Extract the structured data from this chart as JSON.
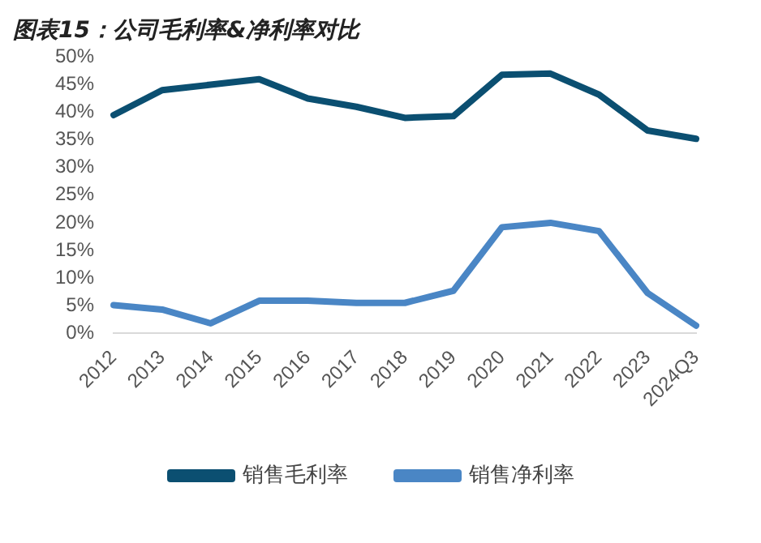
{
  "chart_data": {
    "type": "line",
    "title": "图表15：公司毛利率&净利率对比",
    "categories": [
      "2012",
      "2013",
      "2014",
      "2015",
      "2016",
      "2017",
      "2018",
      "2019",
      "2020",
      "2021",
      "2022",
      "2023",
      "2024Q3"
    ],
    "series": [
      {
        "name": "销售毛利率",
        "color": "#0b4f71",
        "values": [
          39.5,
          44,
          45,
          46,
          42.5,
          41,
          39,
          39.3,
          46.8,
          47,
          43.2,
          36.7,
          35.2
        ]
      },
      {
        "name": "销售净利率",
        "color": "#4a86c5",
        "values": [
          5.1,
          4.3,
          1.8,
          5.9,
          5.9,
          5.5,
          5.5,
          7.7,
          19.2,
          20,
          18.5,
          7.3,
          1.4
        ]
      }
    ],
    "ylim": [
      0,
      50
    ],
    "yticks": [
      {
        "value": 0,
        "label": "0%"
      },
      {
        "value": 5,
        "label": "5%"
      },
      {
        "value": 10,
        "label": "10%"
      },
      {
        "value": 15,
        "label": "15%"
      },
      {
        "value": 20,
        "label": "20%"
      },
      {
        "value": 25,
        "label": "25%"
      },
      {
        "value": 30,
        "label": "30%"
      },
      {
        "value": 35,
        "label": "35%"
      },
      {
        "value": 40,
        "label": "40%"
      },
      {
        "value": 45,
        "label": "45%"
      },
      {
        "value": 50,
        "label": "50%"
      }
    ],
    "grid": false,
    "legend": "bottom",
    "marker": "none",
    "line_style": "solid"
  }
}
